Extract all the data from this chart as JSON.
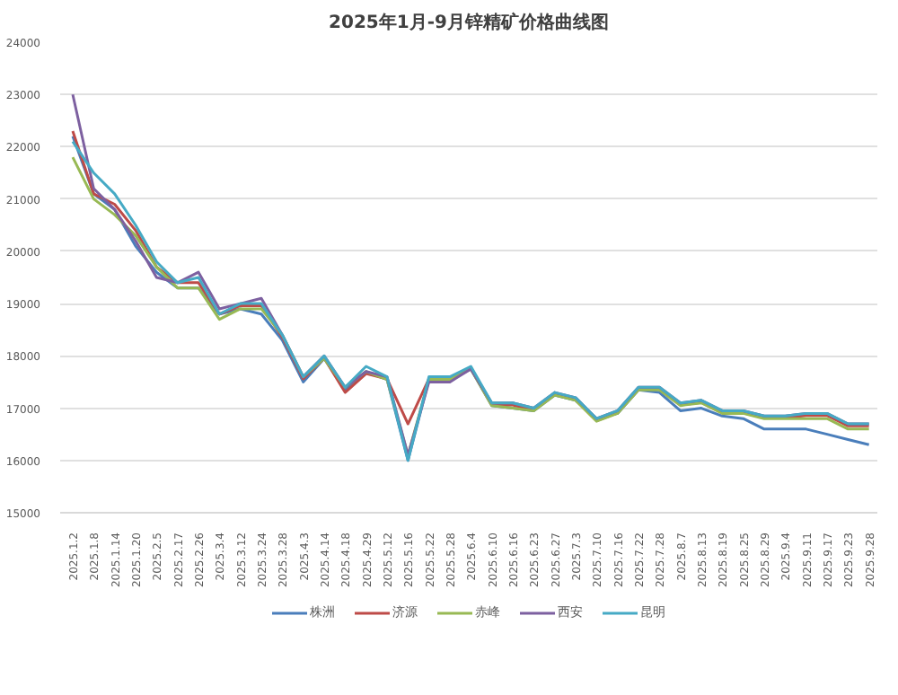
{
  "chart_data": {
    "type": "line",
    "title": "2025年1月-9月锌精矿价格曲线图",
    "categories": [
      "2025.1.2",
      "2025.1.8",
      "2025.1.14",
      "2025.1.20",
      "2025.2.5",
      "2025.2.17",
      "2025.2.26",
      "2025.3.4",
      "2025.3.12",
      "2025.3.24",
      "2025.3.28",
      "2025.4.3",
      "2025.4.14",
      "2025.4.18",
      "2025.4.29",
      "2025.5.12",
      "2025.5.16",
      "2025.5.22",
      "2025.5.28",
      "2025.6.4",
      "2025.6.10",
      "2025.6.16",
      "2025.6.23",
      "2025.6.27",
      "2025.7.3",
      "2025.7.10",
      "2025.7.16",
      "2025.7.22",
      "2025.7.28",
      "2025.8.7",
      "2025.8.13",
      "2025.8.19",
      "2025.8.25",
      "2025.8.29",
      "2025.9.4",
      "2025.9.11",
      "2025.9.17",
      "2025.9.23",
      "2025.9.28"
    ],
    "series": [
      {
        "name": "株洲",
        "color": "#4a7ebb",
        "values": [
          22200,
          21100,
          20800,
          20100,
          19600,
          19300,
          19300,
          18800,
          18900,
          18800,
          18300,
          17500,
          17950,
          17350,
          17700,
          17550,
          16000,
          17550,
          17550,
          17750,
          17050,
          17000,
          16950,
          17250,
          17150,
          16800,
          16900,
          17350,
          17300,
          16950,
          17000,
          16850,
          16800,
          16600,
          16600,
          16600,
          16500,
          16400,
          16300
        ]
      },
      {
        "name": "济源",
        "color": "#be4b48",
        "values": [
          22300,
          21100,
          20900,
          20400,
          19700,
          19400,
          19400,
          18800,
          18960,
          18960,
          18360,
          17560,
          17960,
          17300,
          17660,
          17560,
          16700,
          17560,
          17560,
          17760,
          17060,
          17060,
          16960,
          17260,
          17160,
          16760,
          16910,
          17360,
          17360,
          17060,
          17110,
          16910,
          16910,
          16810,
          16810,
          16860,
          16860,
          16660,
          16660
        ]
      },
      {
        "name": "赤峰",
        "color": "#98b954",
        "values": [
          21800,
          21000,
          20700,
          20300,
          19700,
          19300,
          19300,
          18700,
          18900,
          18900,
          18400,
          17600,
          17950,
          17400,
          17700,
          17550,
          16100,
          17550,
          17550,
          17750,
          17050,
          17000,
          16950,
          17250,
          17150,
          16750,
          16900,
          17350,
          17350,
          17050,
          17100,
          16900,
          16900,
          16800,
          16800,
          16800,
          16800,
          16600,
          16600
        ]
      },
      {
        "name": "西安",
        "color": "#7d60a0",
        "values": [
          23000,
          21200,
          20800,
          20200,
          19500,
          19400,
          19600,
          18900,
          19000,
          19100,
          18400,
          17600,
          18000,
          17400,
          17700,
          17600,
          16100,
          17500,
          17500,
          17750,
          17100,
          17100,
          17000,
          17300,
          17200,
          16800,
          16950,
          17400,
          17400,
          17100,
          17150,
          16950,
          16950,
          16850,
          16850,
          16900,
          16900,
          16700,
          16700
        ]
      },
      {
        "name": "昆明",
        "color": "#46aac5",
        "values": [
          22100,
          21500,
          21100,
          20500,
          19800,
          19400,
          19500,
          18800,
          19000,
          19000,
          18400,
          17600,
          18000,
          17400,
          17800,
          17600,
          16000,
          17600,
          17600,
          17800,
          17100,
          17100,
          17000,
          17300,
          17200,
          16800,
          16950,
          17400,
          17400,
          17100,
          17150,
          16950,
          16950,
          16850,
          16850,
          16900,
          16900,
          16700,
          16700
        ]
      }
    ],
    "ylim": [
      15000,
      24000
    ],
    "yticks": [
      15000,
      16000,
      17000,
      18000,
      19000,
      20000,
      21000,
      22000,
      23000,
      24000
    ],
    "grid": "y",
    "legend": "bottom",
    "marker": "none",
    "line_style": "solid"
  }
}
